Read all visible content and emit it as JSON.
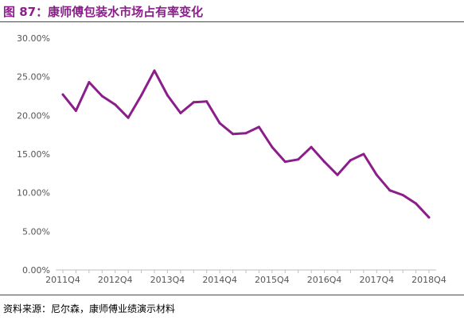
{
  "figure": {
    "title": "图 87：康师傅包装水市场占有率变化",
    "source": "资料来源：尼尔森，康师傅业绩演示材料"
  },
  "chart_data": {
    "type": "line",
    "title": "",
    "xlabel": "",
    "ylabel": "",
    "ylim": [
      0,
      0.3
    ],
    "ytick_labels": [
      "0.00%",
      "5.00%",
      "10.00%",
      "15.00%",
      "20.00%",
      "25.00%",
      "30.00%"
    ],
    "yticks": [
      0,
      0.05,
      0.1,
      0.15,
      0.2,
      0.25,
      0.3
    ],
    "x_tick_labels": [
      "2011Q4",
      "2012Q4",
      "2013Q4",
      "2014Q4",
      "2015Q4",
      "2016Q4",
      "2017Q4",
      "2018Q4"
    ],
    "x": [
      "2011Q4",
      "2012Q1",
      "2012Q2",
      "2012Q3",
      "2012Q4",
      "2013Q1",
      "2013Q2",
      "2013Q3",
      "2013Q4",
      "2014Q1",
      "2014Q2",
      "2014Q3",
      "2014Q4",
      "2015Q1",
      "2015Q2",
      "2015Q3",
      "2015Q4",
      "2016Q1",
      "2016Q2",
      "2016Q3",
      "2016Q4",
      "2017Q1",
      "2017Q2",
      "2017Q3",
      "2017Q4",
      "2018Q1",
      "2018Q2",
      "2018Q3",
      "2018Q4"
    ],
    "series": [
      {
        "color": "#8B1E8B",
        "values": [
          0.227,
          0.206,
          0.243,
          0.225,
          0.214,
          0.197,
          0.226,
          0.258,
          0.226,
          0.203,
          0.217,
          0.218,
          0.19,
          0.176,
          0.177,
          0.185,
          0.159,
          0.14,
          0.143,
          0.159,
          0.14,
          0.123,
          0.142,
          0.15,
          0.123,
          0.103,
          0.097,
          0.086,
          0.068
        ]
      }
    ],
    "grid": false,
    "legend": "none"
  }
}
